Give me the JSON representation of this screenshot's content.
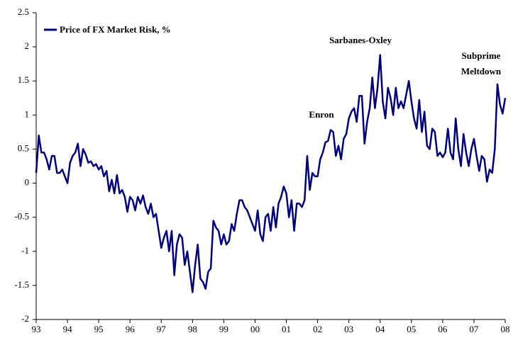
{
  "chart_data": {
    "type": "line",
    "legend": "Price of FX Market Risk, %",
    "color": "#00007f",
    "annotations": [
      [
        "Enron"
      ],
      [
        "Sarbanes-Oxley"
      ],
      [
        "Subprime",
        "Meltdown"
      ]
    ],
    "values": [
      0.15,
      0.7,
      0.45,
      0.45,
      0.35,
      0.2,
      0.4,
      0.4,
      0.15,
      0.15,
      0.2,
      0.1,
      0.0,
      0.3,
      0.4,
      0.45,
      0.58,
      0.25,
      0.5,
      0.42,
      0.3,
      0.32,
      0.25,
      0.28,
      0.2,
      0.25,
      0.1,
      0.18,
      -0.12,
      0.05,
      -0.15,
      0.12,
      -0.15,
      -0.1,
      -0.2,
      -0.42,
      -0.2,
      -0.25,
      -0.4,
      -0.2,
      -0.3,
      -0.18,
      -0.35,
      -0.45,
      -0.3,
      -0.5,
      -0.45,
      -0.7,
      -0.95,
      -0.8,
      -0.7,
      -1.0,
      -0.7,
      -1.35,
      -0.9,
      -0.75,
      -0.8,
      -1.2,
      -1.0,
      -1.3,
      -1.6,
      -1.2,
      -0.9,
      -1.4,
      -1.45,
      -1.55,
      -1.3,
      -1.25,
      -0.55,
      -0.65,
      -0.7,
      -0.9,
      -0.75,
      -0.9,
      -0.85,
      -0.6,
      -0.7,
      -0.45,
      -0.25,
      -0.25,
      -0.35,
      -0.4,
      -0.5,
      -0.6,
      -0.7,
      -0.4,
      -0.75,
      -0.85,
      -0.5,
      -0.45,
      -0.7,
      -0.35,
      -0.65,
      -0.3,
      -0.2,
      -0.05,
      -0.15,
      -0.5,
      -0.25,
      -0.7,
      -0.3,
      -0.3,
      -0.35,
      -0.25,
      0.4,
      -0.1,
      0.15,
      0.1,
      0.1,
      0.35,
      0.45,
      0.6,
      0.62,
      0.78,
      0.75,
      0.4,
      0.55,
      0.35,
      0.65,
      0.72,
      0.95,
      1.05,
      1.1,
      0.9,
      1.28,
      1.28,
      0.58,
      0.9,
      1.1,
      1.55,
      1.1,
      1.4,
      1.88,
      1.2,
      0.95,
      1.4,
      1.25,
      1.0,
      1.4,
      1.1,
      1.2,
      1.1,
      1.3,
      1.5,
      1.2,
      0.95,
      0.8,
      1.22,
      0.75,
      1.05,
      0.55,
      0.5,
      0.8,
      0.75,
      0.4,
      0.45,
      0.38,
      0.45,
      0.8,
      0.45,
      0.35,
      0.95,
      0.5,
      0.25,
      0.72,
      0.45,
      0.25,
      0.5,
      0.65,
      0.4,
      0.18,
      0.4,
      0.35,
      0.02,
      0.2,
      0.15,
      0.5,
      1.45,
      1.15,
      1.02,
      1.25
    ],
    "xlim": [
      0,
      180
    ],
    "xticks": [
      {
        "value": 0,
        "label": "93"
      },
      {
        "value": 12,
        "label": "94"
      },
      {
        "value": 24,
        "label": "95"
      },
      {
        "value": 36,
        "label": "96"
      },
      {
        "value": 48,
        "label": "97"
      },
      {
        "value": 60,
        "label": "98"
      },
      {
        "value": 72,
        "label": "99"
      },
      {
        "value": 84,
        "label": "00"
      },
      {
        "value": 96,
        "label": "01"
      },
      {
        "value": 108,
        "label": "02"
      },
      {
        "value": 120,
        "label": "03"
      },
      {
        "value": 132,
        "label": "04"
      },
      {
        "value": 144,
        "label": "05"
      },
      {
        "value": 156,
        "label": "06"
      },
      {
        "value": 168,
        "label": "07"
      },
      {
        "value": 180,
        "label": "08"
      }
    ],
    "ylim": [
      -2,
      2.5
    ],
    "yticks": [
      -2,
      -1.5,
      -1,
      -0.5,
      0,
      0.5,
      1,
      1.5,
      2,
      2.5
    ]
  }
}
